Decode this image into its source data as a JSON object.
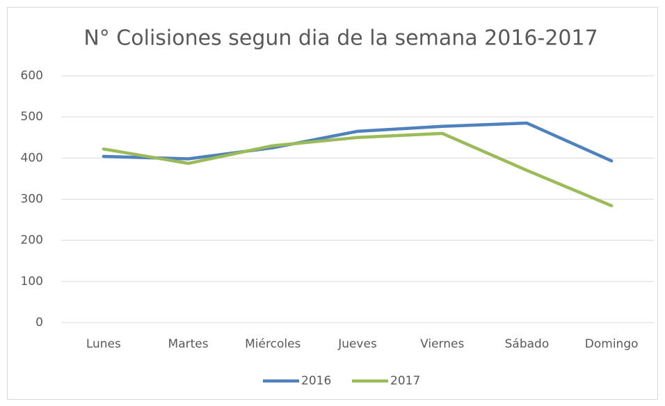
{
  "chart_data": {
    "type": "line",
    "title": "N° Colisiones segun dia de la semana 2016-2017",
    "categories": [
      "Lunes",
      "Martes",
      "Miércoles",
      "Jueves",
      "Viernes",
      "Sábado",
      "Domingo"
    ],
    "series": [
      {
        "name": "2016",
        "color": "#4f81bd",
        "values": [
          404,
          398,
          425,
          465,
          477,
          485,
          393
        ]
      },
      {
        "name": "2017",
        "color": "#9bbb59",
        "values": [
          422,
          387,
          430,
          450,
          460,
          370,
          284
        ]
      }
    ],
    "ylim": [
      0,
      600
    ],
    "yticks": [
      0,
      100,
      200,
      300,
      400,
      500,
      600
    ],
    "grid": true,
    "legend": "bottom"
  }
}
